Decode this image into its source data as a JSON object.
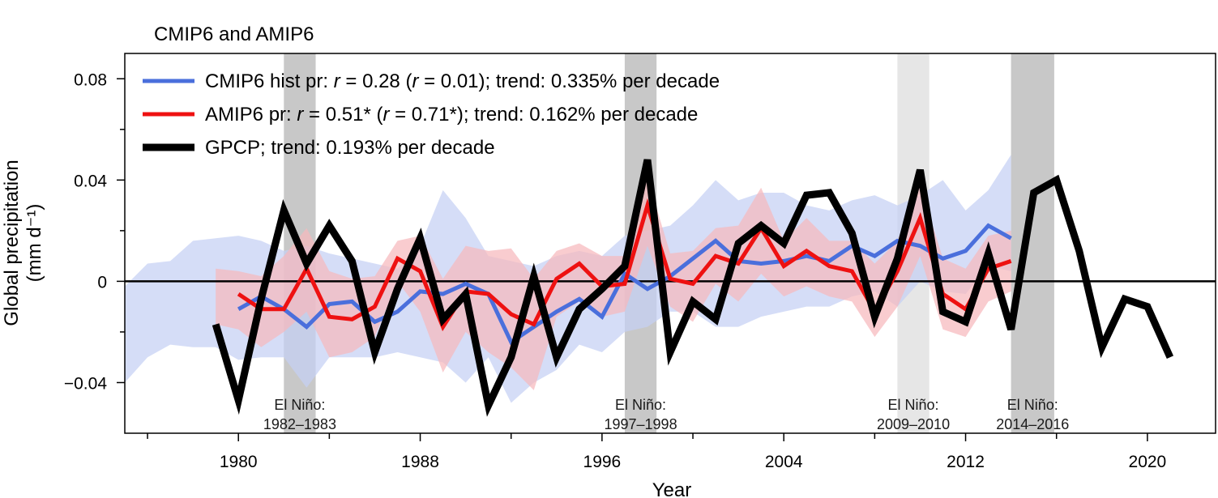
{
  "chart_data": {
    "type": "line",
    "title": "CMIP6 and AMIP6",
    "xlabel": "Year",
    "ylabel_line1": "Global precipitation",
    "ylabel_line2": "(mm d⁻¹)",
    "xlim": [
      1975,
      2023
    ],
    "ylim": [
      -0.06,
      0.09
    ],
    "xticks": [
      1980,
      1988,
      1996,
      2004,
      2012,
      2020
    ],
    "xtick_labels": [
      "1980",
      "1988",
      "1996",
      "2004",
      "2012",
      "2020"
    ],
    "yticks": [
      -0.04,
      0,
      0.04,
      0.08
    ],
    "ytick_labels": [
      "−0.04",
      "0",
      "0.04",
      "0.08"
    ],
    "zero_line": true,
    "el_nino_bands": [
      {
        "start": 1982.0,
        "end": 1983.4,
        "shade": "#c8c8c8",
        "label_line1": "El Niño:",
        "label_line2": "1982–1983"
      },
      {
        "start": 1997.0,
        "end": 1998.4,
        "shade": "#c8c8c8",
        "label_line1": "El Niño:",
        "label_line2": "1997–1998"
      },
      {
        "start": 2009.0,
        "end": 2010.4,
        "shade": "#e6e6e6",
        "label_line1": "El Niño:",
        "label_line2": "2009–2010"
      },
      {
        "start": 2014.0,
        "end": 2015.9,
        "shade": "#c8c8c8",
        "label_line1": "El Niño:",
        "label_line2": "2014–2016"
      }
    ],
    "legend": {
      "placement": "top-left",
      "entries": [
        {
          "series": "CMIP6",
          "parts": [
            {
              "t": "CMIP6 hist pr: ",
              "i": false
            },
            {
              "t": "r",
              "i": true
            },
            {
              "t": " = 0.28 (",
              "i": false
            },
            {
              "t": "r",
              "i": true
            },
            {
              "t": " = 0.01); trend: 0.335% per decade",
              "i": false
            }
          ]
        },
        {
          "series": "AMIP6",
          "parts": [
            {
              "t": "AMIP6 pr: ",
              "i": false
            },
            {
              "t": "r",
              "i": true
            },
            {
              "t": " = 0.51* (",
              "i": false
            },
            {
              "t": "r",
              "i": true
            },
            {
              "t": " = 0.71*); trend: 0.162% per decade",
              "i": false
            }
          ]
        },
        {
          "series": "GPCP",
          "parts": [
            {
              "t": "GPCP; trend: 0.193% per decade",
              "i": false
            }
          ]
        }
      ]
    },
    "series": [
      {
        "name": "CMIP6",
        "color": "#4a6fdc",
        "band_color": "#c5d0f4",
        "x": [
          1980,
          1981,
          1982,
          1983,
          1984,
          1985,
          1986,
          1987,
          1988,
          1989,
          1990,
          1991,
          1992,
          1993,
          1994,
          1995,
          1996,
          1997,
          1998,
          1999,
          2000,
          2001,
          2002,
          2003,
          2004,
          2005,
          2006,
          2007,
          2008,
          2009,
          2010,
          2011,
          2012,
          2013,
          2014
        ],
        "values": [
          -0.011,
          -0.006,
          -0.011,
          -0.018,
          -0.009,
          -0.008,
          -0.016,
          -0.012,
          -0.004,
          -0.005,
          -0.001,
          -0.005,
          -0.024,
          -0.018,
          -0.012,
          -0.007,
          -0.014,
          0.003,
          -0.003,
          0.002,
          0.009,
          0.016,
          0.008,
          0.007,
          0.008,
          0.01,
          0.008,
          0.014,
          0.01,
          0.016,
          0.014,
          0.009,
          0.012,
          0.022,
          0.017
        ],
        "band_x": [
          1975,
          1976,
          1977,
          1978,
          1979,
          1980,
          1981,
          1982,
          1983,
          1984,
          1985,
          1986,
          1987,
          1988,
          1989,
          1990,
          1991,
          1992,
          1993,
          1994,
          1995,
          1996,
          1997,
          1998,
          1999,
          2000,
          2001,
          2002,
          2003,
          2004,
          2005,
          2006,
          2007,
          2008,
          2009,
          2010,
          2011,
          2012,
          2013,
          2014
        ],
        "band_upper": [
          -0.002,
          0.007,
          0.008,
          0.016,
          0.017,
          0.018,
          0.016,
          0.012,
          0.014,
          0.011,
          0.009,
          0.007,
          0.005,
          0.014,
          0.036,
          0.025,
          0.01,
          0.008,
          0.006,
          0.01,
          0.012,
          0.01,
          0.018,
          0.02,
          0.022,
          0.03,
          0.04,
          0.032,
          0.035,
          0.035,
          0.03,
          0.028,
          0.032,
          0.034,
          0.03,
          0.034,
          0.04,
          0.028,
          0.036,
          0.05
        ],
        "band_lower": [
          -0.04,
          -0.03,
          -0.025,
          -0.026,
          -0.026,
          -0.031,
          -0.03,
          -0.03,
          -0.042,
          -0.03,
          -0.03,
          -0.03,
          -0.028,
          -0.03,
          -0.032,
          -0.04,
          -0.03,
          -0.048,
          -0.04,
          -0.035,
          -0.025,
          -0.028,
          -0.02,
          -0.018,
          -0.012,
          -0.012,
          -0.018,
          -0.018,
          -0.014,
          -0.012,
          -0.01,
          -0.01,
          -0.006,
          -0.004,
          -0.01,
          0.0,
          -0.004,
          -0.005,
          0.006,
          0.004
        ]
      },
      {
        "name": "AMIP6",
        "color": "#ee1111",
        "band_color": "#f7b8bc",
        "x": [
          1980,
          1981,
          1982,
          1983,
          1984,
          1985,
          1986,
          1987,
          1988,
          1989,
          1990,
          1991,
          1992,
          1993,
          1994,
          1995,
          1996,
          1997,
          1998,
          1999,
          2000,
          2001,
          2002,
          2003,
          2004,
          2005,
          2006,
          2007,
          2008,
          2009,
          2010,
          2011,
          2012,
          2013,
          2014
        ],
        "values": [
          -0.005,
          -0.011,
          -0.011,
          0.005,
          -0.014,
          -0.015,
          -0.01,
          0.009,
          0.004,
          -0.018,
          -0.004,
          -0.005,
          -0.013,
          -0.017,
          0.001,
          0.007,
          -0.002,
          -0.001,
          0.03,
          0.001,
          -0.001,
          0.01,
          0.007,
          0.021,
          0.006,
          0.012,
          0.006,
          0.004,
          -0.012,
          0.004,
          0.025,
          -0.005,
          -0.011,
          0.005,
          0.008
        ],
        "band_x": [
          1979,
          1980,
          1981,
          1982,
          1983,
          1984,
          1985,
          1986,
          1987,
          1988,
          1989,
          1990,
          1991,
          1992,
          1993,
          1994,
          1995,
          1996,
          1997,
          1998,
          1999,
          2000,
          2001,
          2002,
          2003,
          2004,
          2005,
          2006,
          2007,
          2008,
          2009,
          2010,
          2011,
          2012,
          2013,
          2014
        ],
        "band_upper": [
          0.005,
          0.004,
          0.002,
          0.01,
          0.021,
          0.004,
          0.001,
          0.002,
          0.016,
          0.018,
          0.001,
          0.014,
          0.012,
          0.013,
          0.001,
          0.012,
          0.015,
          0.01,
          0.01,
          0.041,
          0.011,
          0.012,
          0.021,
          0.022,
          0.037,
          0.016,
          0.025,
          0.016,
          0.016,
          0.007,
          0.016,
          0.038,
          0.009,
          0.005,
          0.018,
          0.02
        ],
        "band_lower": [
          -0.017,
          -0.019,
          -0.026,
          -0.02,
          -0.012,
          -0.03,
          -0.028,
          -0.022,
          0.0,
          -0.012,
          -0.036,
          -0.02,
          -0.028,
          -0.034,
          -0.043,
          -0.014,
          -0.008,
          -0.014,
          -0.012,
          0.014,
          -0.01,
          -0.016,
          -0.001,
          -0.008,
          0.003,
          -0.006,
          -0.002,
          -0.006,
          -0.008,
          -0.022,
          -0.01,
          0.01,
          -0.019,
          -0.022,
          -0.008,
          -0.004
        ]
      },
      {
        "name": "GPCP",
        "color": "#000000",
        "x": [
          1979,
          1980,
          1981,
          1982,
          1983,
          1984,
          1985,
          1986,
          1987,
          1988,
          1989,
          1990,
          1991,
          1992,
          1993,
          1994,
          1995,
          1996,
          1997,
          1998,
          1999,
          2000,
          2001,
          2002,
          2003,
          2004,
          2005,
          2006,
          2007,
          2008,
          2009,
          2010,
          2011,
          2012,
          2013,
          2014,
          2015,
          2016,
          2017,
          2018,
          2019,
          2020,
          2021
        ],
        "values": [
          -0.017,
          -0.047,
          -0.007,
          0.028,
          0.007,
          0.022,
          0.008,
          -0.028,
          -0.003,
          0.017,
          -0.015,
          -0.005,
          -0.049,
          -0.03,
          0.002,
          -0.03,
          -0.011,
          -0.003,
          0.006,
          0.048,
          -0.028,
          -0.008,
          -0.015,
          0.015,
          0.022,
          0.015,
          0.034,
          0.035,
          0.019,
          -0.014,
          0.009,
          0.044,
          -0.012,
          -0.016,
          0.011,
          -0.019,
          0.035,
          0.04,
          0.012,
          -0.026,
          -0.007,
          -0.01,
          -0.03
        ]
      }
    ]
  }
}
